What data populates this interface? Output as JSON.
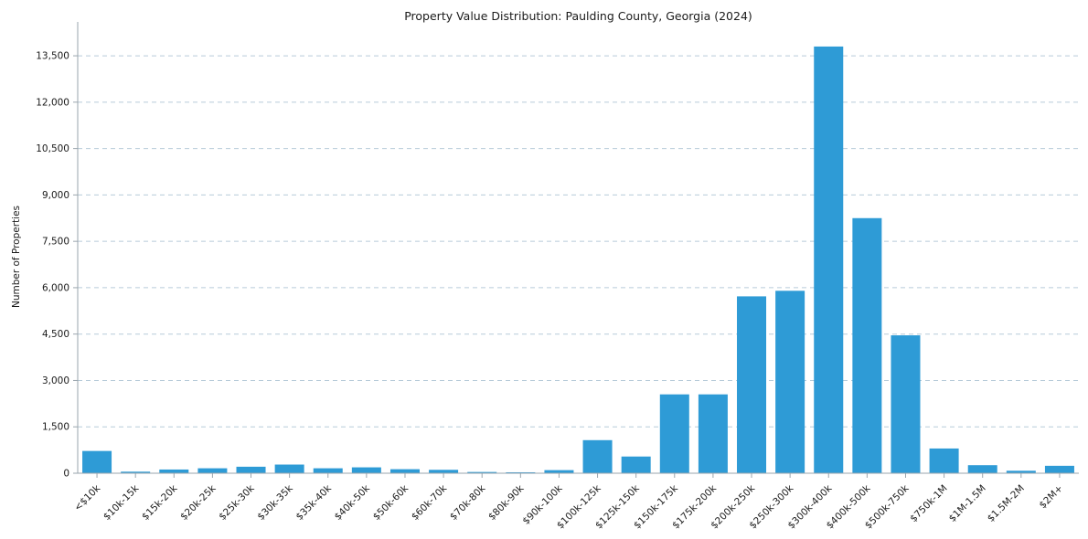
{
  "title": "Property Value Distribution: Paulding County, Georgia (2024)",
  "chart_data": {
    "type": "bar",
    "title": "Property Value Distribution: Paulding County, Georgia (2024)",
    "xlabel": "",
    "ylabel": "Number of Properties",
    "categories": [
      "<$10k",
      "$10k-15k",
      "$15k-20k",
      "$20k-25k",
      "$25k-30k",
      "$30k-35k",
      "$35k-40k",
      "$40k-50k",
      "$50k-60k",
      "$60k-70k",
      "$70k-80k",
      "$80k-90k",
      "$90k-100k",
      "$100k-125k",
      "$125k-150k",
      "$150k-175k",
      "$175k-200k",
      "$200k-250k",
      "$250k-300k",
      "$300k-400k",
      "$400k-500k",
      "$500k-750k",
      "$750k-1M",
      "$1M-1.5M",
      "$1.5M-2M",
      "$2M+"
    ],
    "values": [
      720,
      50,
      120,
      160,
      210,
      280,
      160,
      190,
      130,
      110,
      40,
      30,
      100,
      1070,
      540,
      2550,
      2550,
      5720,
      5900,
      13800,
      8250,
      4460,
      800,
      260,
      80,
      240
    ],
    "ylim": [
      0,
      14300
    ],
    "yticks": [
      0,
      1500,
      3000,
      4500,
      6000,
      7500,
      9000,
      10500,
      12000,
      13500
    ],
    "bar_color": "#2e9bd6",
    "gridline_color": "#b7cbd9",
    "axis_color": "#9aa5ad",
    "grid": "dashed horizontal",
    "legend": "none",
    "background": "#ffffff"
  }
}
